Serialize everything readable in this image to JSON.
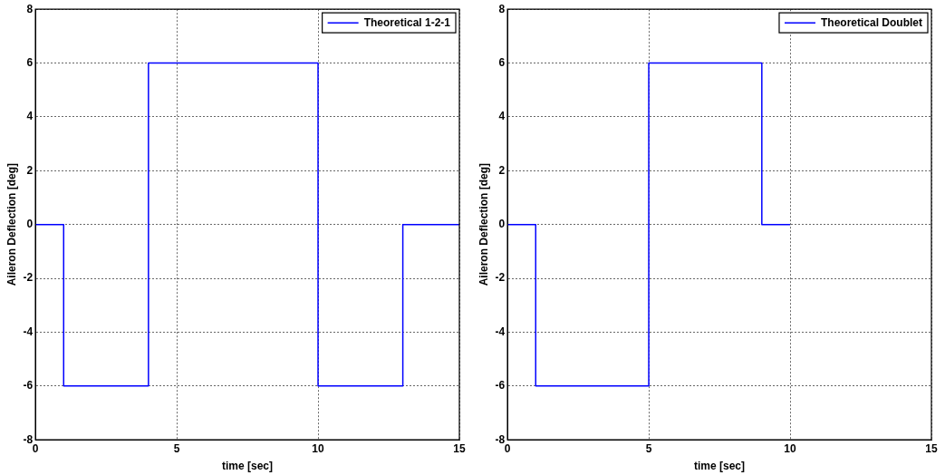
{
  "chart_data": [
    {
      "type": "step",
      "xlabel": "time [sec]",
      "ylabel": "Aileron Deflection [deg]",
      "x": [
        0,
        1,
        4,
        10,
        13,
        15
      ],
      "series": [
        {
          "name": "Theoretical 1-2-1",
          "color": "#0000ff",
          "values": [
            0,
            -6,
            6,
            -6,
            0,
            0
          ]
        }
      ],
      "xlim": [
        0,
        15
      ],
      "xticks": [
        0,
        5,
        10,
        15
      ],
      "ylim": [
        -8,
        8
      ],
      "yticks": [
        -8,
        -6,
        -4,
        -2,
        0,
        2,
        4,
        6,
        8
      ],
      "grid": true,
      "legend": "top right"
    },
    {
      "type": "step",
      "xlabel": "time [sec]",
      "ylabel": "Aileron Deflection [deg]",
      "x": [
        0,
        1,
        5,
        9,
        10
      ],
      "series": [
        {
          "name": "Theoretical Doublet",
          "color": "#0000ff",
          "values": [
            0,
            -6,
            6,
            0,
            0
          ]
        }
      ],
      "xlim": [
        0,
        15
      ],
      "xticks": [
        0,
        5,
        10,
        15
      ],
      "ylim": [
        -8,
        8
      ],
      "yticks": [
        -8,
        -6,
        -4,
        -2,
        0,
        2,
        4,
        6,
        8
      ],
      "grid": true,
      "legend": "top right"
    }
  ]
}
